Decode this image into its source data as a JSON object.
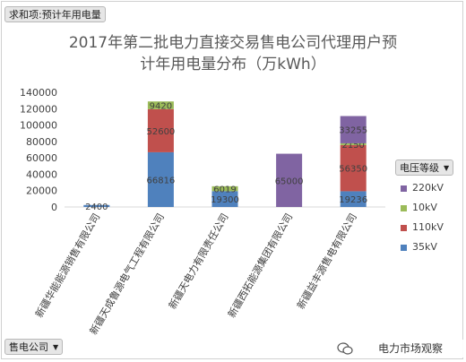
{
  "pivot": {
    "values_field": "求和项:预计年用电量",
    "axis_field": "售电公司",
    "legend_field": "电压等级"
  },
  "watermark": {
    "text": "电力市场观察"
  },
  "chart_data": {
    "type": "bar",
    "stacked": true,
    "title_line1": "2017年第二批电力直接交易售电公司代理用户预",
    "title_line2": "计年用电量分布（万kWh）",
    "categories": [
      "新疆华能能源销售有限公司",
      "新疆天成鲁源电气工程有限公司",
      "新疆天电力有限责任公司",
      "新疆西拓能源集团有限公司",
      "新疆益丰源售电有限公司"
    ],
    "series": [
      {
        "name": "35kV",
        "color": "#4f81bd",
        "values": [
          2400,
          66816,
          19300,
          0,
          19236
        ]
      },
      {
        "name": "110kV",
        "color": "#c0504d",
        "values": [
          0,
          52600,
          0,
          0,
          56350
        ]
      },
      {
        "name": "10kV",
        "color": "#9bbb59",
        "values": [
          0,
          9420,
          6019,
          0,
          2150
        ]
      },
      {
        "name": "220kV",
        "color": "#8064a2",
        "values": [
          0,
          0,
          0,
          65000,
          33255
        ]
      }
    ],
    "data_labels": [
      [
        "2400",
        "",
        "",
        ""
      ],
      [
        "66816",
        "52600",
        "9420",
        ""
      ],
      [
        "19300",
        "",
        "6019",
        ""
      ],
      [
        "",
        "",
        "",
        "65000"
      ],
      [
        "19236",
        "56350",
        "2150",
        "33255"
      ]
    ],
    "legend_order": [
      "220kV",
      "10kV",
      "110kV",
      "35kV"
    ],
    "yticks": [
      0,
      20000,
      40000,
      60000,
      80000,
      100000,
      120000,
      140000
    ],
    "ylim": [
      0,
      140000
    ],
    "grid": false,
    "legend_position": "right"
  }
}
